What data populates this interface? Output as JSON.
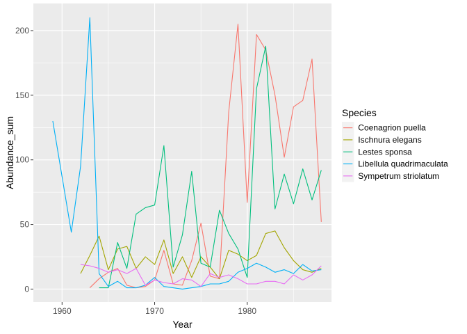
{
  "chart_data": {
    "type": "line",
    "xlabel": "Year",
    "ylabel": "Abundance_sum",
    "xlim": [
      1956.9,
      1989.1
    ],
    "ylim": [
      -10,
      221
    ],
    "x_ticks": [
      1960,
      1970,
      1980
    ],
    "y_ticks": [
      0,
      50,
      100,
      150,
      200
    ],
    "grid": true,
    "background": "#ebebeb",
    "legend": {
      "title": "Species",
      "placement": "right"
    },
    "series": [
      {
        "name": "Coenagrion puella",
        "color": "#F8766D",
        "x": [
          1963,
          1964,
          1965,
          1966,
          1967,
          1968,
          1969,
          1970,
          1971,
          1972,
          1973,
          1974,
          1975,
          1976,
          1977,
          1978,
          1979,
          1980,
          1981,
          1982,
          1983,
          1984,
          1985,
          1986,
          1987,
          1988
        ],
        "y": [
          1,
          8,
          13,
          16,
          3,
          1,
          2,
          7,
          30,
          4,
          3,
          22,
          51,
          10,
          8,
          137,
          205,
          67,
          197,
          185,
          150,
          102,
          141,
          146,
          178,
          52
        ]
      },
      {
        "name": "Ischnura elegans",
        "color": "#A3A500",
        "x": [
          1962,
          1963,
          1964,
          1965,
          1966,
          1967,
          1968,
          1969,
          1970,
          1971,
          1972,
          1973,
          1974,
          1975,
          1976,
          1977,
          1978,
          1979,
          1980,
          1981,
          1982,
          1983,
          1984,
          1985,
          1986,
          1987,
          1988
        ],
        "y": [
          12,
          26,
          41,
          15,
          31,
          33,
          16,
          25,
          19,
          38,
          12,
          25,
          9,
          25,
          17,
          8,
          30,
          27,
          22,
          26,
          43,
          45,
          32,
          22,
          15,
          13,
          16
        ]
      },
      {
        "name": "Lestes sponsa",
        "color": "#00BF7D",
        "x": [
          1964,
          1965,
          1966,
          1967,
          1968,
          1969,
          1970,
          1971,
          1972,
          1973,
          1974,
          1975,
          1976,
          1977,
          1978,
          1979,
          1980,
          1981,
          1982,
          1983,
          1984,
          1985,
          1986,
          1987,
          1988
        ],
        "y": [
          1,
          1,
          36,
          16,
          58,
          63,
          65,
          111,
          17,
          42,
          91,
          20,
          17,
          61,
          43,
          31,
          9,
          155,
          188,
          62,
          89,
          66,
          93,
          69,
          92
        ]
      },
      {
        "name": "Libellula quadrimaculata",
        "color": "#00B0F6",
        "x": [
          1959,
          1960,
          1961,
          1962,
          1963,
          1964,
          1965,
          1966,
          1967,
          1968,
          1969,
          1970,
          1971,
          1972,
          1973,
          1974,
          1975,
          1976,
          1977,
          1978,
          1979,
          1980,
          1981,
          1982,
          1983,
          1984,
          1985,
          1986,
          1987,
          1988
        ],
        "y": [
          130,
          87,
          44,
          95,
          210,
          12,
          2,
          6,
          1,
          1,
          3,
          9,
          2,
          1,
          0,
          1,
          2,
          4,
          4,
          6,
          13,
          16,
          20,
          17,
          13,
          15,
          12,
          19,
          14,
          15
        ]
      },
      {
        "name": "Sympetrum striolatum",
        "color": "#E76BF3",
        "x": [
          1962,
          1963,
          1964,
          1965,
          1966,
          1967,
          1968,
          1969,
          1970,
          1971,
          1972,
          1973,
          1974,
          1975,
          1976,
          1977,
          1978,
          1979,
          1980,
          1981,
          1982,
          1983,
          1984,
          1985,
          1986,
          1987,
          1988
        ],
        "y": [
          19,
          18,
          16,
          13,
          15,
          12,
          16,
          3,
          7,
          5,
          4,
          8,
          7,
          2,
          12,
          9,
          11,
          8,
          4,
          4,
          6,
          6,
          4,
          11,
          7,
          11,
          18
        ]
      }
    ]
  }
}
